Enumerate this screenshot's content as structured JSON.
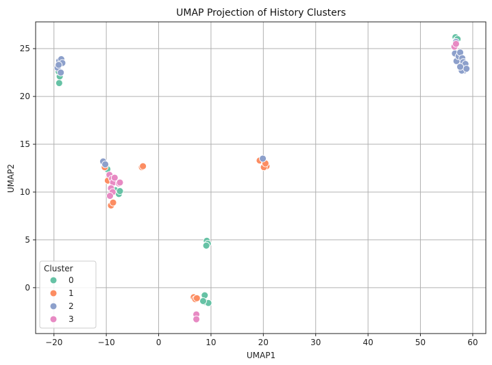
{
  "chart_data": {
    "type": "scatter",
    "title": "UMAP Projection of History Clusters",
    "xlabel": "UMAP1",
    "ylabel": "UMAP2",
    "xlim": [
      -23.5,
      62.5
    ],
    "ylim": [
      -4.8,
      27.8
    ],
    "xticks": [
      -20,
      -10,
      0,
      10,
      20,
      30,
      40,
      50,
      60
    ],
    "yticks": [
      0,
      5,
      10,
      15,
      20,
      25
    ],
    "grid": true,
    "legend": {
      "title": "Cluster",
      "placement": "lower-left",
      "entries": [
        "0",
        "1",
        "2",
        "3"
      ]
    },
    "series": [
      {
        "name": "0",
        "color": "#66c2a5",
        "points": [
          [
            -19.0,
            21.4
          ],
          [
            -18.9,
            22.1
          ],
          [
            -19.1,
            22.6
          ],
          [
            -9.8,
            12.4
          ],
          [
            -8.3,
            10.2
          ],
          [
            -7.6,
            9.8
          ],
          [
            -7.4,
            10.1
          ],
          [
            9.2,
            4.9
          ],
          [
            9.4,
            4.6
          ],
          [
            9.1,
            4.4
          ],
          [
            8.8,
            -0.8
          ],
          [
            8.9,
            -1.5
          ],
          [
            9.5,
            -1.6
          ],
          [
            8.5,
            -1.4
          ],
          [
            20.0,
            13.4
          ],
          [
            56.7,
            26.2
          ],
          [
            56.9,
            25.9
          ],
          [
            57.1,
            26.0
          ]
        ]
      },
      {
        "name": "1",
        "color": "#fc8d62",
        "points": [
          [
            -10.3,
            12.6
          ],
          [
            -9.7,
            11.2
          ],
          [
            -9.1,
            8.6
          ],
          [
            -8.7,
            8.9
          ],
          [
            -3.2,
            12.6
          ],
          [
            -3.0,
            12.7
          ],
          [
            6.7,
            -1.0
          ],
          [
            7.0,
            -1.2
          ],
          [
            7.3,
            -1.1
          ],
          [
            19.3,
            13.3
          ],
          [
            20.3,
            13.1
          ],
          [
            20.6,
            12.7
          ],
          [
            20.1,
            12.6
          ],
          [
            20.4,
            13.0
          ]
        ]
      },
      {
        "name": "2",
        "color": "#8da0cb",
        "points": [
          [
            -19.3,
            23.0
          ],
          [
            -19.0,
            23.7
          ],
          [
            -18.6,
            23.9
          ],
          [
            -18.4,
            23.5
          ],
          [
            -19.1,
            23.3
          ],
          [
            -18.7,
            22.5
          ],
          [
            -10.6,
            13.2
          ],
          [
            -10.2,
            12.9
          ],
          [
            19.9,
            13.5
          ],
          [
            56.6,
            24.5
          ],
          [
            56.9,
            23.7
          ],
          [
            57.3,
            24.2
          ],
          [
            57.6,
            24.6
          ],
          [
            58.0,
            24.0
          ],
          [
            58.2,
            23.6
          ],
          [
            58.5,
            23.0
          ],
          [
            58.3,
            22.7
          ],
          [
            57.9,
            22.7
          ],
          [
            58.6,
            23.4
          ],
          [
            58.8,
            22.9
          ],
          [
            57.6,
            23.1
          ],
          [
            56.8,
            25.7
          ]
        ]
      },
      {
        "name": "3",
        "color": "#e78ac3",
        "points": [
          [
            -9.4,
            11.8
          ],
          [
            -8.9,
            11.4
          ],
          [
            -8.7,
            11.0
          ],
          [
            -9.1,
            10.4
          ],
          [
            -8.8,
            10.0
          ],
          [
            -9.3,
            9.6
          ],
          [
            -7.6,
            10.9
          ],
          [
            -7.4,
            11.0
          ],
          [
            -8.4,
            11.5
          ],
          [
            7.2,
            -2.8
          ],
          [
            7.2,
            -3.3
          ],
          [
            56.5,
            25.2
          ],
          [
            56.8,
            25.5
          ]
        ]
      }
    ]
  }
}
